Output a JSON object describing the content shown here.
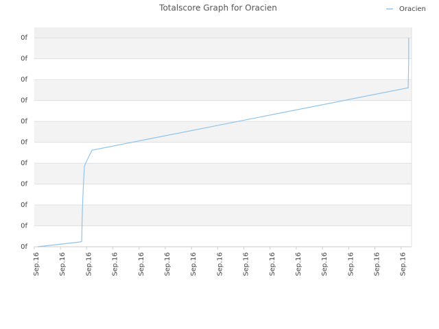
{
  "chart_data": {
    "type": "line",
    "title": "Totalscore Graph for Oracien",
    "x": [
      0.13,
      1.75,
      1.81,
      1.83,
      1.86,
      1.91,
      1.96,
      2.2,
      14.27,
      14.29,
      14.29
    ],
    "series": [
      {
        "name": "Oracien",
        "color": "#8ec3ee",
        "values": [
          0,
          0.23,
          0.26,
          1.54,
          2.56,
          3.84,
          4.0,
          4.62,
          7.61,
          8.85,
          10.0
        ]
      }
    ],
    "xlim": [
      0,
      14.4
    ],
    "xticks": [
      {
        "value": 0,
        "label": "Sep.16"
      },
      {
        "value": 1,
        "label": "Sep.16"
      },
      {
        "value": 2,
        "label": "Sep.16"
      },
      {
        "value": 3,
        "label": "Sep.16"
      },
      {
        "value": 4,
        "label": "Sep.16"
      },
      {
        "value": 5,
        "label": "Sep.16"
      },
      {
        "value": 6,
        "label": "Sep.16"
      },
      {
        "value": 7,
        "label": "Sep.16"
      },
      {
        "value": 8,
        "label": "Sep.16"
      },
      {
        "value": 9,
        "label": "Sep.16"
      },
      {
        "value": 10,
        "label": "Sep.16"
      },
      {
        "value": 11,
        "label": "Sep.16"
      },
      {
        "value": 12,
        "label": "Sep.16"
      },
      {
        "value": 13,
        "label": "Sep.16"
      },
      {
        "value": 14,
        "label": "Sep.16"
      }
    ],
    "ylim": [
      0,
      10.5
    ],
    "yticks": [
      {
        "value": 0,
        "label": "0f"
      },
      {
        "value": 1,
        "label": "0f"
      },
      {
        "value": 2,
        "label": "0f"
      },
      {
        "value": 3,
        "label": "0f"
      },
      {
        "value": 4,
        "label": "0f"
      },
      {
        "value": 5,
        "label": "0f"
      },
      {
        "value": 6,
        "label": "0f"
      },
      {
        "value": 7,
        "label": "0f"
      },
      {
        "value": 8,
        "label": "0f"
      },
      {
        "value": 9,
        "label": "0f"
      },
      {
        "value": 10,
        "label": "0f"
      }
    ],
    "grid": true,
    "legend": "top-right"
  }
}
